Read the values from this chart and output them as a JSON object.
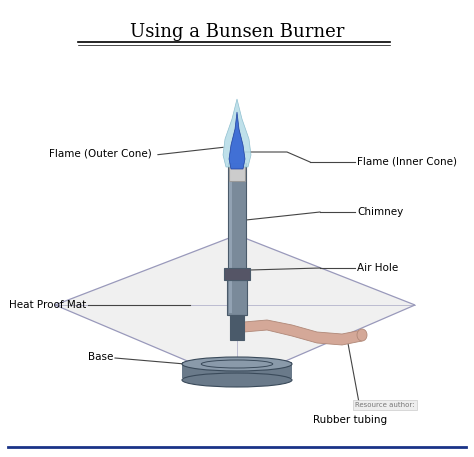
{
  "title": "Using a Bunsen Burner",
  "bg_color": "#ffffff",
  "title_fontsize": 13,
  "label_fontsize": 7.5,
  "labels": {
    "flame_outer": "Flame (Outer Cone)",
    "flame_inner": "Flame (Inner Cone)",
    "chimney": "Chimney",
    "air_hole": "Air Hole",
    "heat_proof_mat": "Heat Proof Mat",
    "base": "Base",
    "rubber_tubing": "Rubber tubing",
    "resource": "Resource author:"
  },
  "colors": {
    "chimney": "#7a8a9a",
    "chimney_dark": "#4a5a6a",
    "chimney_light": "#aabbcc",
    "base_fill": "#6a7a8a",
    "base_dark": "#3a4a5a",
    "base_rim": "#8a9aaa",
    "flame_outer": "#b8dde8",
    "flame_outer_edge": "#88bbcc",
    "flame_inner": "#3a6ad4",
    "flame_inner_dark": "#1a3a99",
    "rubber": "#d4a898",
    "rubber_edge": "#b08878",
    "mat_line": "#9999bb",
    "label_line": "#444444",
    "border_bottom": "#1a3388",
    "nozzle": "#cccccc",
    "collar": "#555566"
  }
}
